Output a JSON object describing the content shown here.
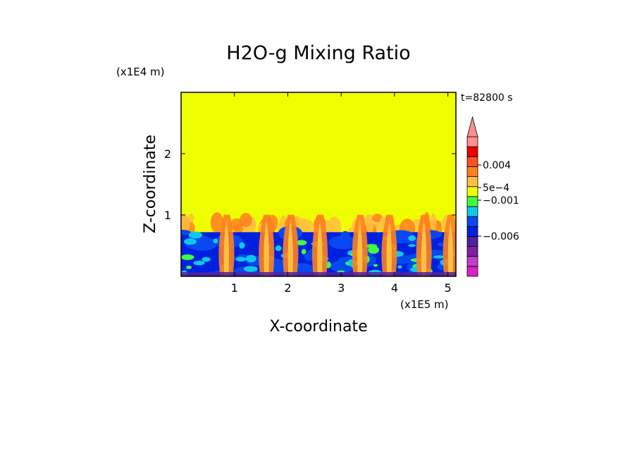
{
  "chart_data": {
    "type": "heatmap",
    "title": "H2O-g Mixing Ratio",
    "xlabel": "X-coordinate",
    "ylabel": "Z-coordinate",
    "x_scale_note": "(x1E5 m)",
    "y_scale_note": "(x1E4 m)",
    "time_label": "t=82800 s",
    "xlim": [
      0,
      5.15
    ],
    "ylim": [
      0,
      3.0
    ],
    "x_ticks": [
      1,
      2,
      3,
      4,
      5
    ],
    "y_ticks": [
      1,
      2
    ],
    "grid": false,
    "fields": {
      "upper_uniform_top": 3.0,
      "upper_uniform_bottom": 1.05,
      "mixing_band_top": 1.05,
      "mixing_band_bottom": 0.72,
      "lower_layer_top": 0.72,
      "plume_centers_x": [
        0.85,
        1.6,
        2.05,
        2.6,
        3.35,
        3.9,
        4.55,
        5.05
      ]
    },
    "colorbar": {
      "colors": [
        "#e020c0",
        "#c040c8",
        "#8020a0",
        "#5020a0",
        "#0020e0",
        "#0848f0",
        "#10c8e8",
        "#40ff40",
        "#f0ff00",
        "#ffc040",
        "#ff8020",
        "#ff5020",
        "#f00000",
        "#ff9090"
      ],
      "labels": [
        "0.004",
        "5e-4",
        "-0.001",
        "-0.006"
      ],
      "label_values": [
        0.004,
        0.0005,
        -0.001,
        -0.006
      ]
    }
  }
}
